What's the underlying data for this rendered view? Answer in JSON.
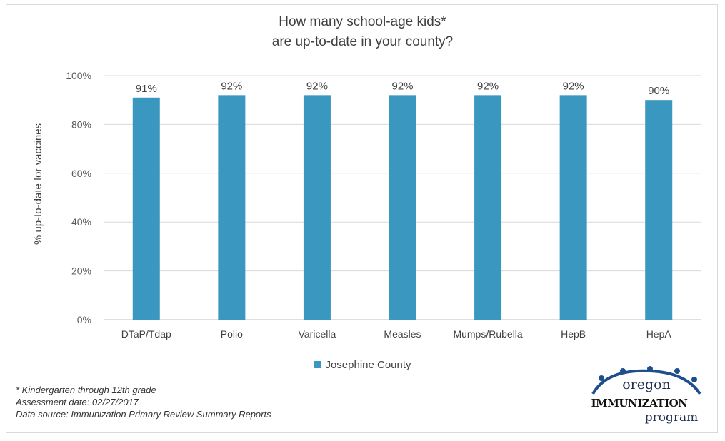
{
  "chart_data": {
    "type": "bar",
    "title_line1": "How many school-age kids*",
    "title_line2": "are up-to-date in your county?",
    "ylabel": "% up-to-date for vaccines",
    "xlabel": "",
    "categories": [
      "DTaP/Tdap",
      "Polio",
      "Varicella",
      "Measles",
      "Mumps/Rubella",
      "HepB",
      "HepA"
    ],
    "series": [
      {
        "name": "Josephine County",
        "values": [
          91,
          92,
          92,
          92,
          92,
          92,
          90
        ],
        "color": "#3a97bf"
      }
    ],
    "data_labels": [
      "91%",
      "92%",
      "92%",
      "92%",
      "92%",
      "92%",
      "90%"
    ],
    "ylim": [
      0,
      100
    ],
    "yticks": [
      "0%",
      "20%",
      "40%",
      "60%",
      "80%",
      "100%"
    ],
    "grid": true,
    "legend_position": "bottom"
  },
  "footnotes": {
    "line1": "* Kindergarten through 12th grade",
    "line2": "Assessment date: 02/27/2017",
    "line3": "Data source: Immunization Primary Review Summary Reports"
  },
  "logo": {
    "word1": "oregon",
    "word2": "IMMUNIZATION",
    "word3": "program",
    "color": "#1f4e8c"
  }
}
